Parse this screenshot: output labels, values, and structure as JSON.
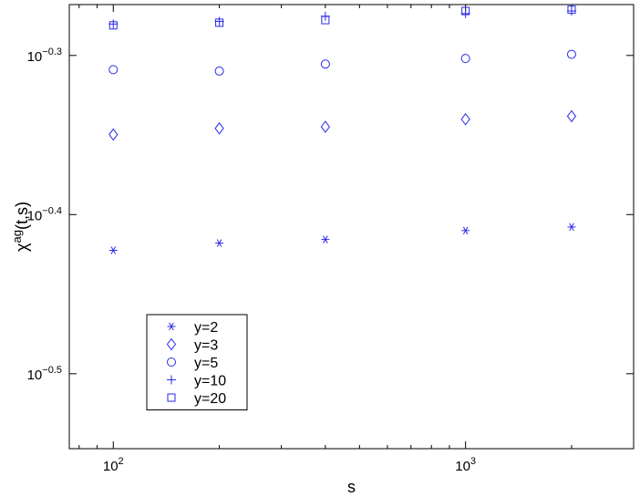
{
  "chart_data": {
    "type": "scatter",
    "x_scale": "log",
    "y_scale": "log",
    "xlabel": "s",
    "ylabel_base": "χ",
    "ylabel_sup": "ag",
    "ylabel_tail": "(t,s)",
    "xlim": [
      75,
      3000
    ],
    "ylim": [
      0.2837,
      0.5395
    ],
    "x_ticks": [
      {
        "value": 100,
        "base": "10",
        "exp": "2"
      },
      {
        "value": 1000,
        "base": "10",
        "exp": "3"
      }
    ],
    "y_ticks": [
      {
        "value": 0.3162,
        "base": "10",
        "exp": "−0.5"
      },
      {
        "value": 0.3981,
        "base": "10",
        "exp": "−0.4"
      },
      {
        "value": 0.5012,
        "base": "10",
        "exp": "−0.3"
      }
    ],
    "grid": false,
    "legend_placement": "lower-left",
    "color": "#2a2ae6",
    "x": [
      100,
      200,
      400,
      1000,
      2000
    ],
    "series": [
      {
        "name": "y=2",
        "marker": "asterisk",
        "values": [
          0.378,
          0.382,
          0.384,
          0.389,
          0.391
        ]
      },
      {
        "name": "y=3",
        "marker": "diamond",
        "values": [
          0.447,
          0.451,
          0.452,
          0.457,
          0.459
        ]
      },
      {
        "name": "y=5",
        "marker": "circle",
        "values": [
          0.491,
          0.49,
          0.495,
          0.499,
          0.502
        ]
      },
      {
        "name": "y=10",
        "marker": "plus",
        "values": [
          0.5245,
          0.5265,
          0.5305,
          0.5325,
          0.5345
        ]
      },
      {
        "name": "y=20",
        "marker": "square",
        "values": [
          0.5235,
          0.5255,
          0.5275,
          0.5345,
          0.5355
        ]
      }
    ]
  }
}
